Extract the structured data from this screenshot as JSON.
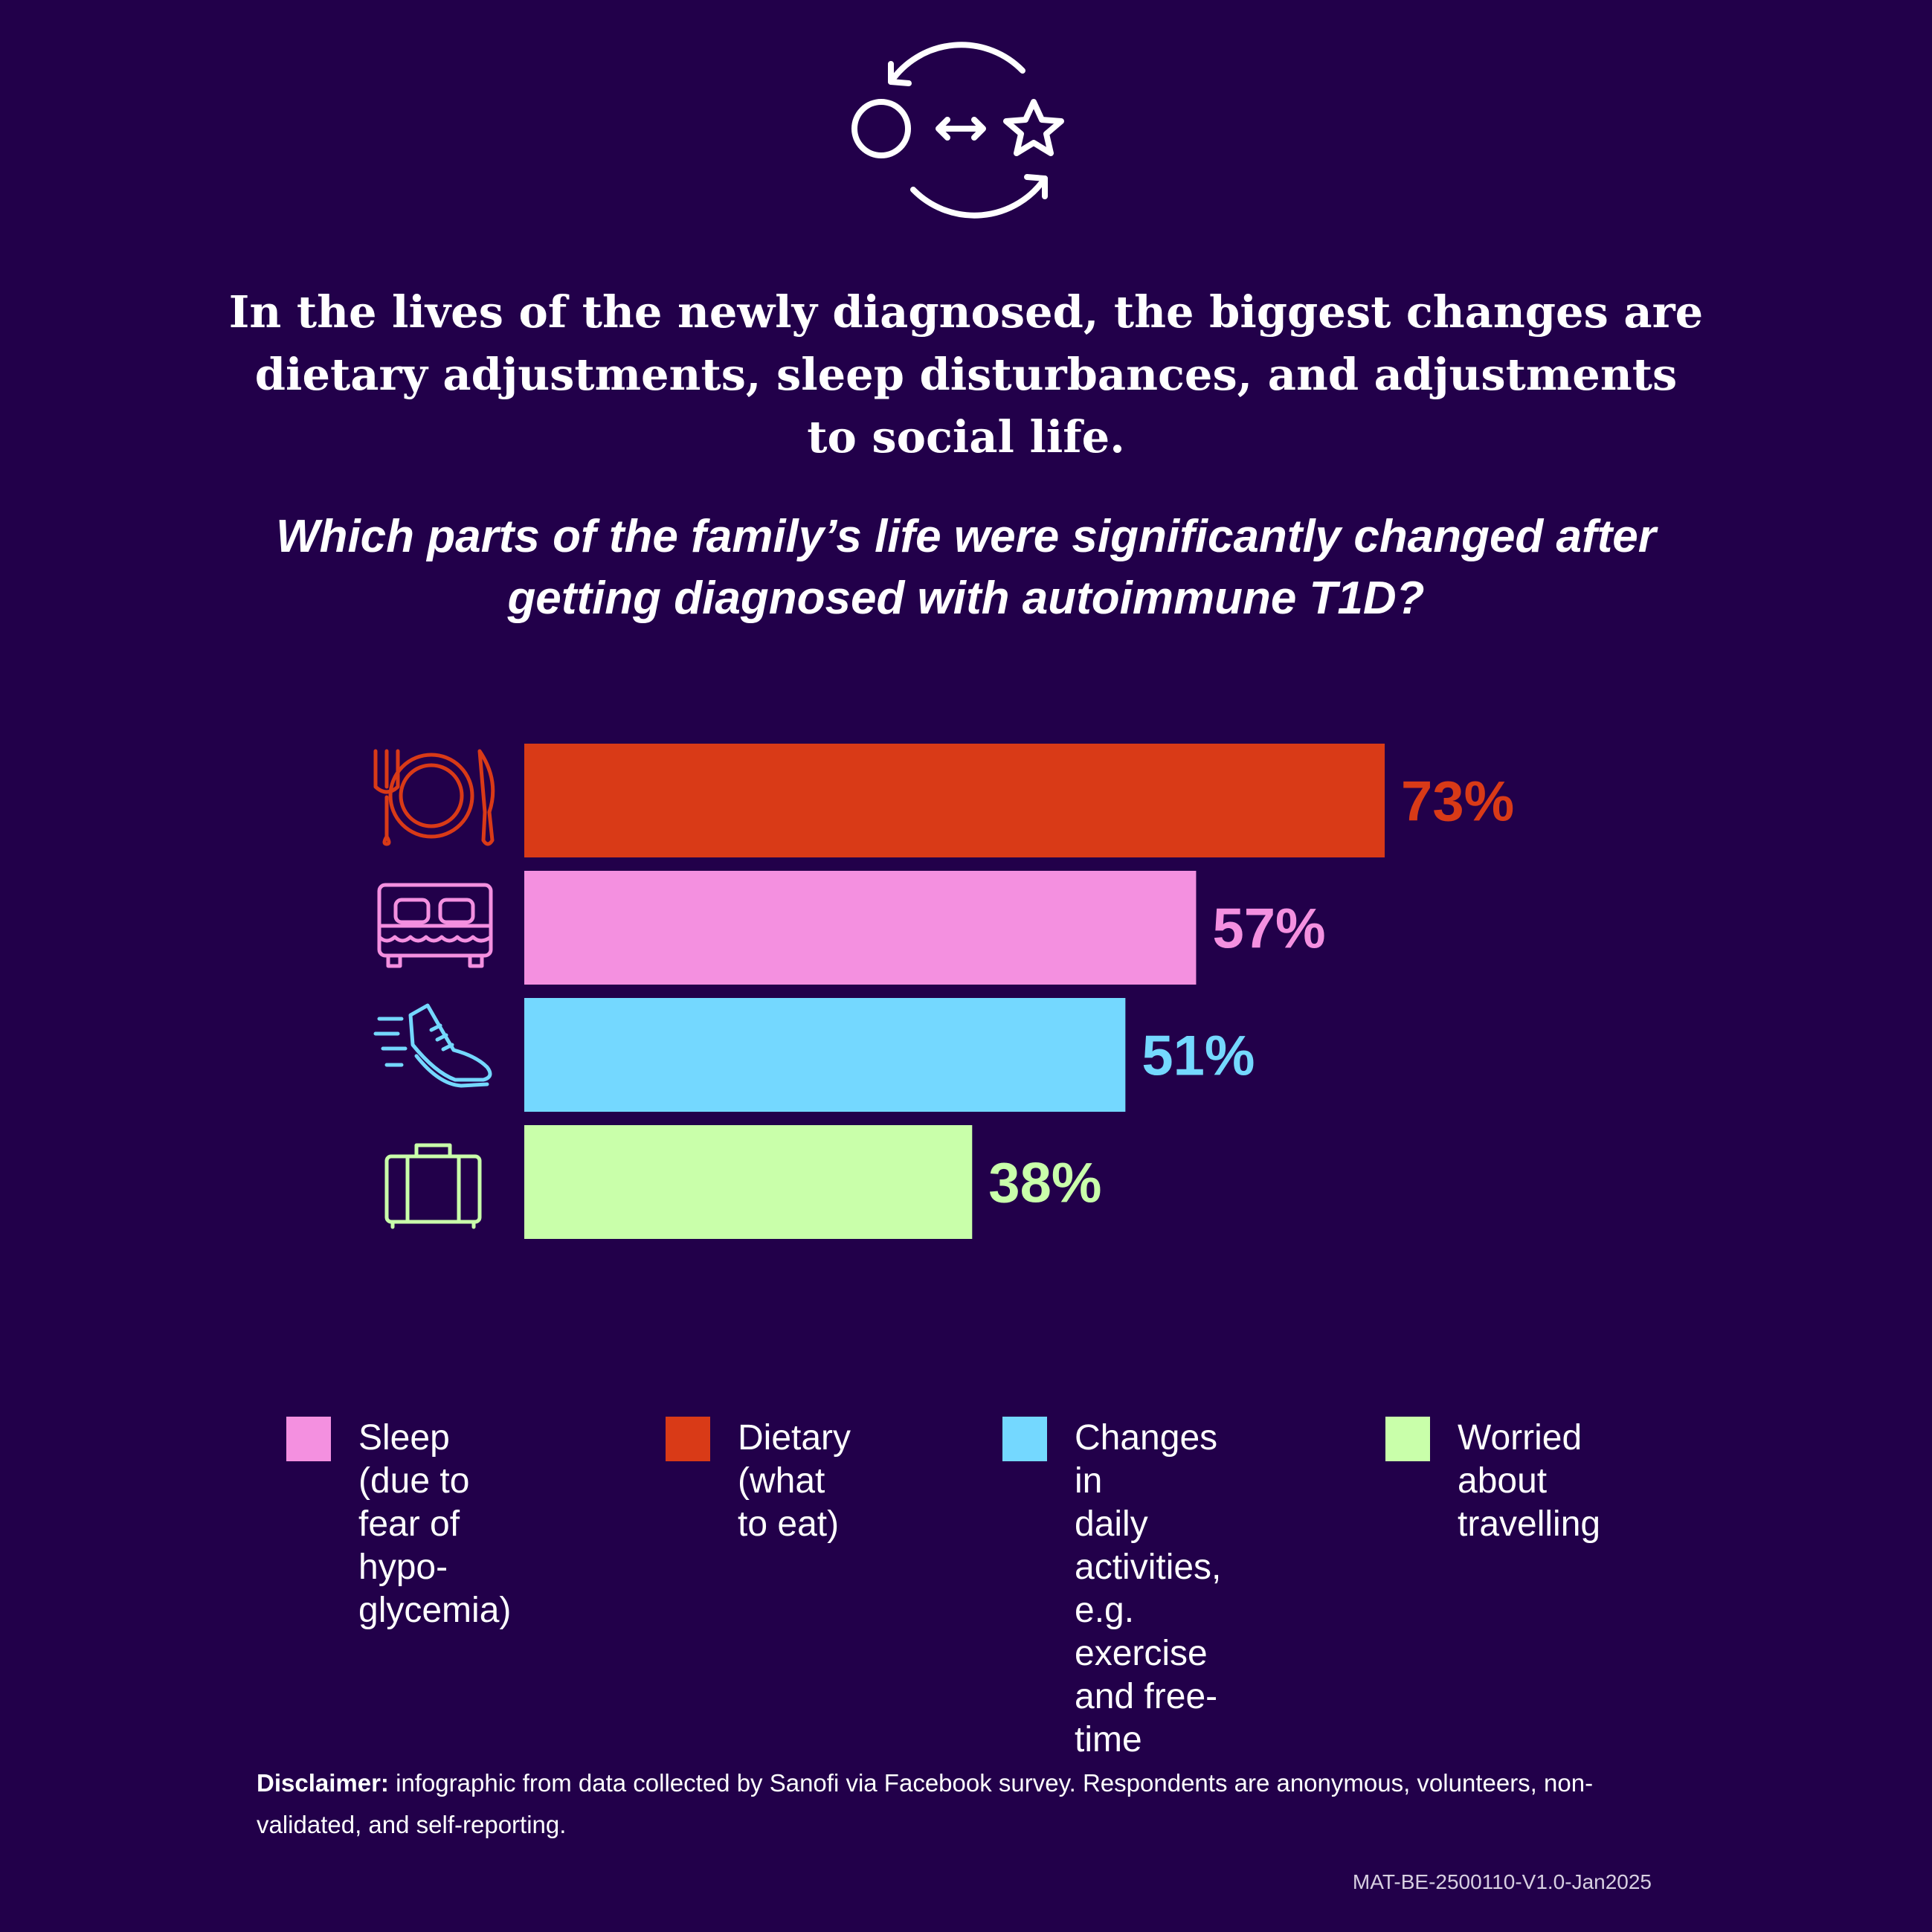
{
  "header": {
    "title": "In the lives of the newly diagnosed, the biggest changes are dietary adjustments, sleep disturbances, and adjustments to social life.",
    "question": "Which parts of the family’s life were significantly changed after getting diagnosed with autoimmune T1D?",
    "icon": "circle-star-exchange-icon"
  },
  "chart_data": {
    "type": "bar",
    "orientation": "horizontal",
    "categories": [
      "Dietary (what to eat)",
      "Sleep (due to fear of hypo-glycemia)",
      "Changes in daily activities, e.g. exercise and free-time",
      "Worried about travelling"
    ],
    "values": [
      73,
      57,
      51,
      38
    ],
    "value_labels": [
      "73%",
      "57%",
      "51%",
      "38%"
    ],
    "colors": [
      "#d93a17",
      "#f490e0",
      "#74d8ff",
      "#c9ffaa"
    ],
    "icons": [
      "plate-cutlery-icon",
      "bed-icon",
      "running-shoe-icon",
      "suitcase-icon"
    ],
    "xlim": [
      0,
      100
    ],
    "grid": false,
    "title": "",
    "xlabel": "",
    "ylabel": ""
  },
  "legend": {
    "items": [
      {
        "label": "Sleep (due to\nfear of hypo-\nglycemia)",
        "color": "#f490e0"
      },
      {
        "label": "Dietary\n(what to eat)",
        "color": "#d93a17"
      },
      {
        "label": "Changes in\ndaily activities,\ne.g. exercise\nand free-time",
        "color": "#74d8ff"
      },
      {
        "label": "Worried\nabout\ntravelling",
        "color": "#c9ffaa"
      }
    ]
  },
  "footer": {
    "disclaimer_label": "Disclaimer:",
    "disclaimer_text": " infographic from data collected by Sanofi via Facebook survey. Respondents are anonymous, volunteers, non-validated, and self-reporting.",
    "code": "MAT-BE-2500110-V1.0-Jan2025"
  }
}
